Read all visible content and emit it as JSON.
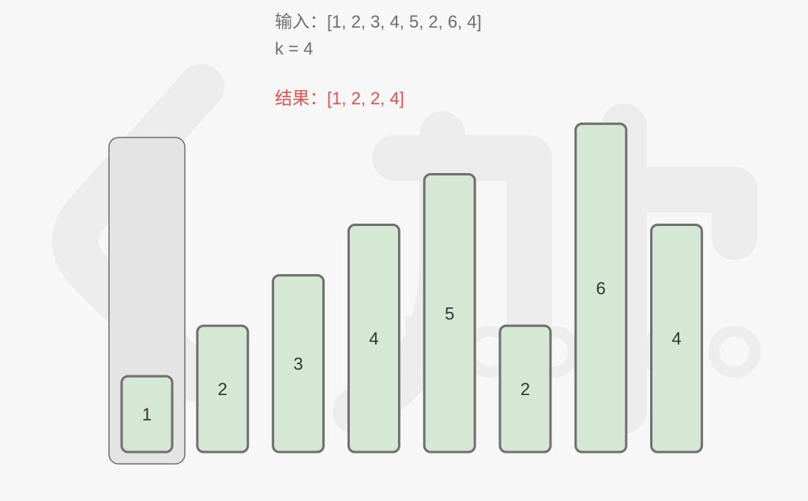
{
  "input_label": "输入：",
  "input_value": "[1, 2, 3, 4, 5, 2, 6, 4]",
  "k_text": "k = 4",
  "result_label": "结果：",
  "result_value": "[1, 2, 2, 4]",
  "bars": [
    1,
    2,
    3,
    4,
    5,
    2,
    6,
    4
  ],
  "highlight_index": 0,
  "colors": {
    "bar_fill": "#d5e8d4",
    "bar_stroke": "#707070",
    "highlight_fill": "#e4e4e4",
    "input_text": "#6f6f6f",
    "result_text": "#e5524e",
    "background": "#f7f7f7"
  }
}
